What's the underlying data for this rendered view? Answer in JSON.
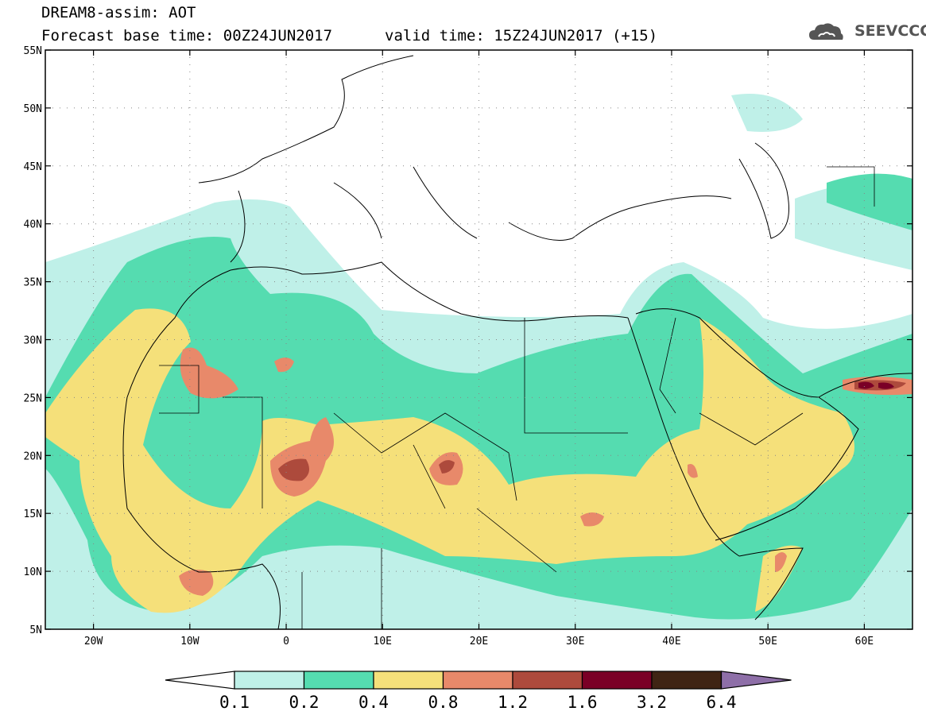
{
  "title": {
    "line1": "DREAM8-assim: AOT",
    "line2": "Forecast base time: 00Z24JUN2017",
    "valid": "valid time: 15Z24JUN2017 (+15)"
  },
  "logo": {
    "text": "SEEVCCC",
    "icon": "cloud-icon"
  },
  "map": {
    "lat_range": [
      5,
      55
    ],
    "lon_range": [
      -25,
      65
    ],
    "lat_ticks": [
      "5N",
      "10N",
      "15N",
      "20N",
      "25N",
      "30N",
      "35N",
      "40N",
      "45N",
      "50N",
      "55N"
    ],
    "lon_ticks": [
      "20W",
      "10W",
      "0",
      "10E",
      "20E",
      "30E",
      "40E",
      "50E",
      "60E"
    ],
    "grid": "dotted"
  },
  "colorbar": {
    "labels": [
      "0.1",
      "0.2",
      "0.4",
      "0.8",
      "1.2",
      "1.6",
      "3.2",
      "6.4"
    ],
    "colors": [
      "#ffffff",
      "#bff0e8",
      "#55dcb0",
      "#f5e07a",
      "#e8896a",
      "#ad4a3c",
      "#7a0026",
      "#3f2414",
      "#8e6fa8"
    ]
  }
}
